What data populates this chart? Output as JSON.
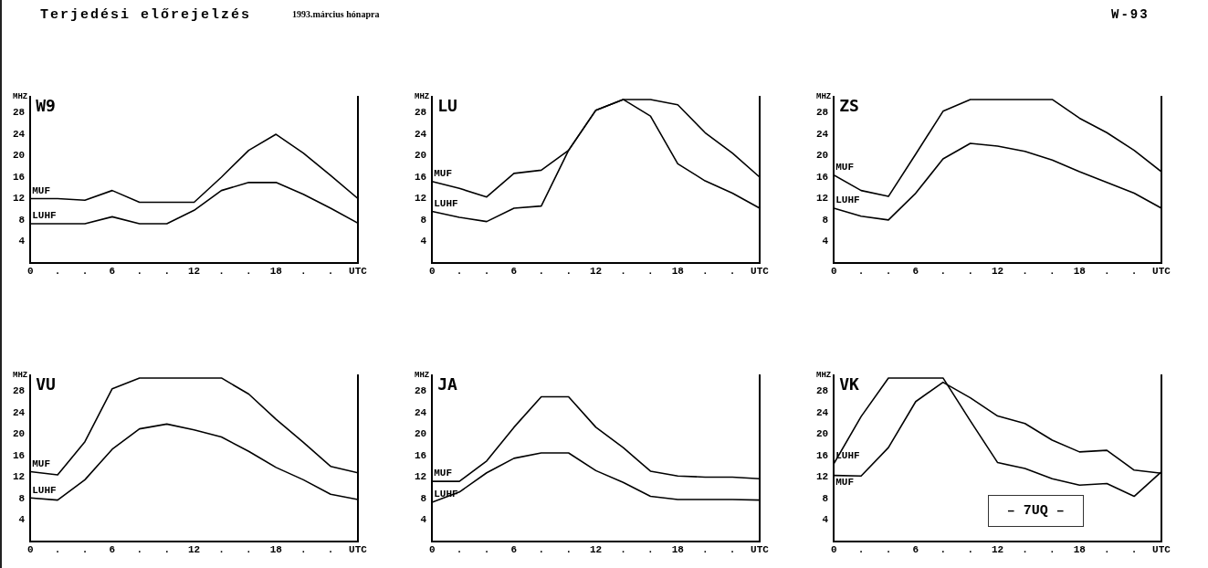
{
  "chart_data": [
    {
      "type": "other",
      "title": "Terjedési előrejelzés",
      "subtitle": "1993.március hónapra",
      "annotations": [
        "W-93"
      ]
    },
    {
      "type": "line",
      "title": "W9",
      "ylabel": "MHZ",
      "x": [
        0,
        2,
        4,
        6,
        8,
        10,
        12,
        14,
        16,
        18,
        20,
        22,
        24
      ],
      "xlim": [
        0,
        24
      ],
      "ylim": [
        0,
        31
      ],
      "yticks": [
        4,
        8,
        12,
        16,
        20,
        24,
        28
      ],
      "xticks": [
        0,
        {
          "value": 2,
          "label": "."
        },
        {
          "value": 4,
          "label": "."
        },
        6,
        {
          "value": 8,
          "label": "."
        },
        {
          "value": 10,
          "label": "."
        },
        12,
        {
          "value": 14,
          "label": "."
        },
        {
          "value": 16,
          "label": "."
        },
        18,
        {
          "value": 20,
          "label": "."
        },
        {
          "value": 22,
          "label": "."
        },
        {
          "value": 24,
          "label": "UTC"
        }
      ],
      "marker": "none",
      "series": [
        {
          "name": "MUF",
          "color": "#000000",
          "values": [
            12,
            12,
            11.7,
            13.5,
            11.3,
            11.3,
            11.3,
            16,
            21,
            24,
            20.5,
            16.3,
            12
          ]
        },
        {
          "name": "LUHF",
          "color": "#000000",
          "values": [
            7.3,
            7.3,
            7.3,
            8.6,
            7.3,
            7.3,
            9.8,
            13.5,
            15,
            15,
            12.8,
            10.2,
            7.4
          ]
        }
      ]
    },
    {
      "type": "line",
      "title": "LU",
      "ylabel": "MHZ",
      "x": [
        0,
        2,
        4,
        6,
        8,
        10,
        12,
        14,
        16,
        18,
        20,
        22,
        24
      ],
      "xlim": [
        0,
        24
      ],
      "ylim": [
        0,
        31
      ],
      "yticks": [
        4,
        8,
        12,
        16,
        20,
        24,
        28
      ],
      "xticks": [
        0,
        {
          "value": 2,
          "label": "."
        },
        {
          "value": 4,
          "label": "."
        },
        6,
        {
          "value": 8,
          "label": "."
        },
        {
          "value": 10,
          "label": "."
        },
        12,
        {
          "value": 14,
          "label": "."
        },
        {
          "value": 16,
          "label": "."
        },
        18,
        {
          "value": 20,
          "label": "."
        },
        {
          "value": 22,
          "label": "."
        },
        {
          "value": 24,
          "label": "UTC"
        }
      ],
      "marker": "none",
      "series": [
        {
          "name": "MUF",
          "color": "#000000",
          "values": [
            15.2,
            13.9,
            12.3,
            16.7,
            17.3,
            21,
            28.5,
            30.5,
            30.5,
            29.5,
            24.3,
            20.5,
            16
          ]
        },
        {
          "name": "LUHF",
          "color": "#000000",
          "values": [
            9.6,
            8.5,
            7.7,
            10.2,
            10.6,
            21,
            28.5,
            30.5,
            27.4,
            18.5,
            15.3,
            13,
            10.2
          ]
        }
      ]
    },
    {
      "type": "line",
      "title": "ZS",
      "ylabel": "MHZ",
      "x": [
        0,
        2,
        4,
        6,
        8,
        10,
        12,
        14,
        16,
        18,
        20,
        22,
        24
      ],
      "xlim": [
        0,
        24
      ],
      "ylim": [
        0,
        31
      ],
      "yticks": [
        4,
        8,
        12,
        16,
        20,
        24,
        28
      ],
      "xticks": [
        0,
        {
          "value": 2,
          "label": "."
        },
        {
          "value": 4,
          "label": "."
        },
        6,
        {
          "value": 8,
          "label": "."
        },
        {
          "value": 10,
          "label": "."
        },
        12,
        {
          "value": 14,
          "label": "."
        },
        {
          "value": 16,
          "label": "."
        },
        18,
        {
          "value": 20,
          "label": "."
        },
        {
          "value": 22,
          "label": "."
        },
        {
          "value": 24,
          "label": "UTC"
        }
      ],
      "marker": "none",
      "series": [
        {
          "name": "MUF",
          "color": "#000000",
          "values": [
            16.4,
            13.5,
            12.4,
            20.3,
            28.3,
            30.5,
            30.5,
            30.5,
            30.5,
            27,
            24.3,
            21,
            17
          ]
        },
        {
          "name": "LUHF",
          "color": "#000000",
          "values": [
            10.2,
            8.7,
            8,
            13,
            19.4,
            22.3,
            21.8,
            20.8,
            19.2,
            17,
            15,
            13,
            10.2
          ]
        }
      ]
    },
    {
      "type": "line",
      "title": "VU",
      "ylabel": "MHZ",
      "x": [
        0,
        2,
        4,
        6,
        8,
        10,
        12,
        14,
        16,
        18,
        20,
        22,
        24
      ],
      "xlim": [
        0,
        24
      ],
      "ylim": [
        0,
        31
      ],
      "yticks": [
        4,
        8,
        12,
        16,
        20,
        24,
        28
      ],
      "xticks": [
        0,
        {
          "value": 2,
          "label": "."
        },
        {
          "value": 4,
          "label": "."
        },
        6,
        {
          "value": 8,
          "label": "."
        },
        {
          "value": 10,
          "label": "."
        },
        12,
        {
          "value": 14,
          "label": "."
        },
        {
          "value": 16,
          "label": "."
        },
        18,
        {
          "value": 20,
          "label": "."
        },
        {
          "value": 22,
          "label": "."
        },
        {
          "value": 24,
          "label": "UTC"
        }
      ],
      "marker": "none",
      "series": [
        {
          "name": "MUF",
          "color": "#000000",
          "values": [
            13,
            12.4,
            18.6,
            28.5,
            30.5,
            30.5,
            30.5,
            30.5,
            27.5,
            22.8,
            18.5,
            14,
            12.8
          ]
        },
        {
          "name": "LUHF",
          "color": "#000000",
          "values": [
            8.1,
            7.7,
            11.5,
            17.2,
            21,
            21.9,
            20.8,
            19.5,
            16.8,
            13.8,
            11.5,
            8.8,
            7.8
          ]
        }
      ]
    },
    {
      "type": "line",
      "title": "JA",
      "ylabel": "MHZ",
      "x": [
        0,
        2,
        4,
        6,
        8,
        10,
        12,
        14,
        16,
        18,
        20,
        22,
        24
      ],
      "xlim": [
        0,
        24
      ],
      "ylim": [
        0,
        31
      ],
      "yticks": [
        4,
        8,
        12,
        16,
        20,
        24,
        28
      ],
      "xticks": [
        0,
        {
          "value": 2,
          "label": "."
        },
        {
          "value": 4,
          "label": "."
        },
        6,
        {
          "value": 8,
          "label": "."
        },
        {
          "value": 10,
          "label": "."
        },
        12,
        {
          "value": 14,
          "label": "."
        },
        {
          "value": 16,
          "label": "."
        },
        18,
        {
          "value": 20,
          "label": "."
        },
        {
          "value": 22,
          "label": "."
        },
        {
          "value": 24,
          "label": "UTC"
        }
      ],
      "marker": "none",
      "series": [
        {
          "name": "MUF",
          "color": "#000000",
          "values": [
            11.2,
            11.2,
            15,
            21.3,
            27,
            27,
            21.3,
            17.5,
            13.1,
            12.2,
            12,
            12,
            11.7
          ]
        },
        {
          "name": "LUHF",
          "color": "#000000",
          "values": [
            7.3,
            9.2,
            12.8,
            15.5,
            16.5,
            16.5,
            13.2,
            11,
            8.4,
            7.8,
            7.8,
            7.8,
            7.7
          ]
        }
      ]
    },
    {
      "type": "line",
      "title": "VK",
      "ylabel": "MHZ",
      "x": [
        0,
        2,
        4,
        6,
        8,
        10,
        12,
        14,
        16,
        18,
        20,
        22,
        24
      ],
      "xlim": [
        0,
        24
      ],
      "ylim": [
        0,
        31
      ],
      "yticks": [
        4,
        8,
        12,
        16,
        20,
        24,
        28
      ],
      "xticks": [
        0,
        {
          "value": 2,
          "label": "."
        },
        {
          "value": 4,
          "label": "."
        },
        6,
        {
          "value": 8,
          "label": "."
        },
        {
          "value": 10,
          "label": "."
        },
        12,
        {
          "value": 14,
          "label": "."
        },
        {
          "value": 16,
          "label": "."
        },
        18,
        {
          "value": 20,
          "label": "."
        },
        {
          "value": 22,
          "label": "."
        },
        {
          "value": 24,
          "label": "UTC"
        }
      ],
      "marker": "none",
      "annotations": [
        "– 7UQ –"
      ],
      "series": [
        {
          "name": "LUHF",
          "color": "#000000",
          "values": [
            14.5,
            23.3,
            30.5,
            30.5,
            30.5,
            22.5,
            14.7,
            13.6,
            11.7,
            10.5,
            10.8,
            8.4,
            13
          ]
        },
        {
          "name": "MUF",
          "color": "#000000",
          "values": [
            12.3,
            12.2,
            17.5,
            26.1,
            29.7,
            26.8,
            23.4,
            22,
            18.9,
            16.7,
            17,
            13.3,
            12.7
          ]
        }
      ]
    }
  ]
}
